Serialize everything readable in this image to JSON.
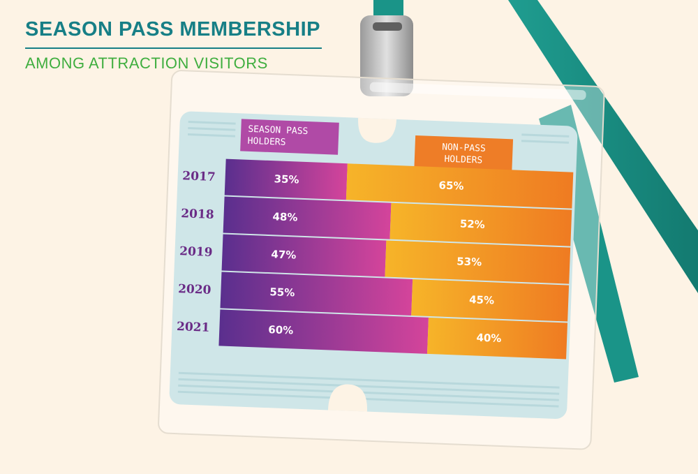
{
  "header": {
    "title": "SEASON PASS MEMBERSHIP",
    "subtitle": "AMONG ATTRACTION VISITORS"
  },
  "colors": {
    "title": "#177f86",
    "subtitle": "#3fae3f",
    "lanyard": "#1a9488",
    "pass_holders_start": "#5a2f8e",
    "pass_holders_end": "#d4449b",
    "non_pass_start": "#f6b429",
    "non_pass_end": "#ef7b22",
    "year_text": "#6a2b86"
  },
  "chart_data": {
    "type": "bar",
    "orientation": "horizontal",
    "stacked": true,
    "percent_stacked": true,
    "categories": [
      "2017",
      "2018",
      "2019",
      "2020",
      "2021"
    ],
    "series": [
      {
        "name": "SEASON PASS HOLDERS",
        "values": [
          35,
          48,
          47,
          55,
          60
        ],
        "labels": [
          "35%",
          "48%",
          "47%",
          "55%",
          "60%"
        ]
      },
      {
        "name": "NON-PASS HOLDERS",
        "values": [
          65,
          52,
          53,
          45,
          40
        ],
        "labels": [
          "65%",
          "52%",
          "53%",
          "45%",
          "40%"
        ]
      }
    ],
    "xlim": [
      0,
      100
    ],
    "legend": [
      "SEASON PASS HOLDERS",
      "NON-PASS HOLDERS"
    ],
    "grid": false
  }
}
